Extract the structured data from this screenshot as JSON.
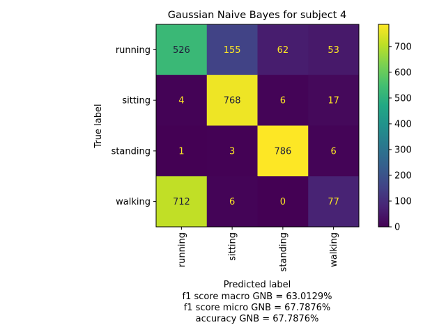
{
  "chart_data": {
    "type": "heatmap",
    "title": "Gaussian Naive Bayes for subject 4",
    "xlabel": "Predicted label",
    "ylabel": "True label",
    "x_categories": [
      "running",
      "sitting",
      "standing",
      "walking"
    ],
    "y_categories": [
      "running",
      "sitting",
      "standing",
      "walking"
    ],
    "matrix": [
      [
        526,
        155,
        62,
        53
      ],
      [
        4,
        768,
        6,
        17
      ],
      [
        1,
        3,
        786,
        6
      ],
      [
        712,
        6,
        0,
        77
      ]
    ],
    "colormap": "viridis",
    "colorbar": {
      "range": [
        0,
        786
      ],
      "ticks": [
        0,
        100,
        200,
        300,
        400,
        500,
        600,
        700
      ]
    },
    "notes": [
      "f1 score macro GNB = 63.0129%",
      "f1 score micro GNB = 67.7876%",
      "accuracy GNB = 67.7876%"
    ]
  }
}
